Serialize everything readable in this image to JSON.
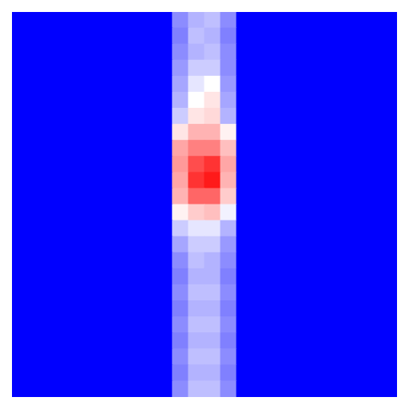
{
  "chart_data": {
    "type": "heatmap",
    "tick_labels": false,
    "color_range": [
      -1,
      1
    ],
    "cells": [
      [
        -1,
        -1,
        -1,
        -1,
        -1,
        -1,
        -1,
        -1,
        -1,
        -1,
        -0.45,
        -0.3,
        -0.25,
        -0.45,
        -1,
        -1,
        -1,
        -1,
        -1,
        -1,
        -1,
        -1,
        -1,
        -1
      ],
      [
        -1,
        -1,
        -1,
        -1,
        -1,
        -1,
        -1,
        -1,
        -1,
        -1,
        -0.5,
        -0.25,
        -0.3,
        -0.5,
        -1,
        -1,
        -1,
        -1,
        -1,
        -1,
        -1,
        -1,
        -1,
        -1
      ],
      [
        -1,
        -1,
        -1,
        -1,
        -1,
        -1,
        -1,
        -1,
        -1,
        -1,
        -0.45,
        -0.3,
        -0.25,
        -0.45,
        -1,
        -1,
        -1,
        -1,
        -1,
        -1,
        -1,
        -1,
        -1,
        -1
      ],
      [
        -1,
        -1,
        -1,
        -1,
        -1,
        -1,
        -1,
        -1,
        -1,
        -1,
        -0.4,
        -0.2,
        -0.2,
        -0.45,
        -1,
        -1,
        -1,
        -1,
        -1,
        -1,
        -1,
        -1,
        -1,
        -1
      ],
      [
        -1,
        -1,
        -1,
        -1,
        -1,
        -1,
        -1,
        -1,
        -1,
        -1,
        -0.35,
        -0.1,
        0.0,
        -0.4,
        -1,
        -1,
        -1,
        -1,
        -1,
        -1,
        -1,
        -1,
        -1,
        -1
      ],
      [
        -1,
        -1,
        -1,
        -1,
        -1,
        -1,
        -1,
        -1,
        -1,
        -1,
        -0.3,
        0.0,
        0.1,
        -0.35,
        -1,
        -1,
        -1,
        -1,
        -1,
        -1,
        -1,
        -1,
        -1,
        -1
      ],
      [
        -1,
        -1,
        -1,
        -1,
        -1,
        -1,
        -1,
        -1,
        -1,
        -1,
        -0.2,
        0.1,
        0.15,
        -0.3,
        -1,
        -1,
        -1,
        -1,
        -1,
        -1,
        -1,
        -1,
        -1,
        -1
      ],
      [
        -1,
        -1,
        -1,
        -1,
        -1,
        -1,
        -1,
        -1,
        -1,
        -1,
        0.1,
        0.3,
        0.3,
        0.05,
        -1,
        -1,
        -1,
        -1,
        -1,
        -1,
        -1,
        -1,
        -1,
        -1
      ],
      [
        -1,
        -1,
        -1,
        -1,
        -1,
        -1,
        -1,
        -1,
        -1,
        -1,
        0.35,
        0.5,
        0.5,
        0.25,
        -1,
        -1,
        -1,
        -1,
        -1,
        -1,
        -1,
        -1,
        -1,
        -1
      ],
      [
        -1,
        -1,
        -1,
        -1,
        -1,
        -1,
        -1,
        -1,
        -1,
        -1,
        0.4,
        0.7,
        0.8,
        0.35,
        -1,
        -1,
        -1,
        -1,
        -1,
        -1,
        -1,
        -1,
        -1,
        -1
      ],
      [
        -1,
        -1,
        -1,
        -1,
        -1,
        -1,
        -1,
        -1,
        -1,
        -1,
        0.35,
        0.8,
        0.9,
        0.3,
        -1,
        -1,
        -1,
        -1,
        -1,
        -1,
        -1,
        -1,
        -1,
        -1
      ],
      [
        -1,
        -1,
        -1,
        -1,
        -1,
        -1,
        -1,
        -1,
        -1,
        -1,
        0.3,
        0.6,
        0.6,
        0.2,
        -1,
        -1,
        -1,
        -1,
        -1,
        -1,
        -1,
        -1,
        -1,
        -1
      ],
      [
        -1,
        -1,
        -1,
        -1,
        -1,
        -1,
        -1,
        -1,
        -1,
        -1,
        0.05,
        0.2,
        0.25,
        -0.05,
        -1,
        -1,
        -1,
        -1,
        -1,
        -1,
        -1,
        -1,
        -1,
        -1
      ],
      [
        -1,
        -1,
        -1,
        -1,
        -1,
        -1,
        -1,
        -1,
        -1,
        -1,
        -0.2,
        -0.1,
        -0.1,
        -0.3,
        -1,
        -1,
        -1,
        -1,
        -1,
        -1,
        -1,
        -1,
        -1,
        -1
      ],
      [
        -1,
        -1,
        -1,
        -1,
        -1,
        -1,
        -1,
        -1,
        -1,
        -1,
        -0.35,
        -0.2,
        -0.2,
        -0.4,
        -1,
        -1,
        -1,
        -1,
        -1,
        -1,
        -1,
        -1,
        -1,
        -1
      ],
      [
        -1,
        -1,
        -1,
        -1,
        -1,
        -1,
        -1,
        -1,
        -1,
        -1,
        -0.45,
        -0.25,
        -0.3,
        -0.45,
        -1,
        -1,
        -1,
        -1,
        -1,
        -1,
        -1,
        -1,
        -1,
        -1
      ],
      [
        -1,
        -1,
        -1,
        -1,
        -1,
        -1,
        -1,
        -1,
        -1,
        -1,
        -0.5,
        -0.3,
        -0.3,
        -0.5,
        -1,
        -1,
        -1,
        -1,
        -1,
        -1,
        -1,
        -1,
        -1,
        -1
      ],
      [
        -1,
        -1,
        -1,
        -1,
        -1,
        -1,
        -1,
        -1,
        -1,
        -1,
        -0.45,
        -0.25,
        -0.25,
        -0.45,
        -1,
        -1,
        -1,
        -1,
        -1,
        -1,
        -1,
        -1,
        -1,
        -1
      ],
      [
        -1,
        -1,
        -1,
        -1,
        -1,
        -1,
        -1,
        -1,
        -1,
        -1,
        -0.5,
        -0.3,
        -0.3,
        -0.5,
        -1,
        -1,
        -1,
        -1,
        -1,
        -1,
        -1,
        -1,
        -1,
        -1
      ],
      [
        -1,
        -1,
        -1,
        -1,
        -1,
        -1,
        -1,
        -1,
        -1,
        -1,
        -0.45,
        -0.25,
        -0.25,
        -0.45,
        -1,
        -1,
        -1,
        -1,
        -1,
        -1,
        -1,
        -1,
        -1,
        -1
      ],
      [
        -1,
        -1,
        -1,
        -1,
        -1,
        -1,
        -1,
        -1,
        -1,
        -1,
        -0.5,
        -0.3,
        -0.3,
        -0.5,
        -1,
        -1,
        -1,
        -1,
        -1,
        -1,
        -1,
        -1,
        -1,
        -1
      ],
      [
        -1,
        -1,
        -1,
        -1,
        -1,
        -1,
        -1,
        -1,
        -1,
        -1,
        -0.45,
        -0.25,
        -0.25,
        -0.45,
        -1,
        -1,
        -1,
        -1,
        -1,
        -1,
        -1,
        -1,
        -1,
        -1
      ],
      [
        -1,
        -1,
        -1,
        -1,
        -1,
        -1,
        -1,
        -1,
        -1,
        -1,
        -0.5,
        -0.3,
        -0.3,
        -0.5,
        -1,
        -1,
        -1,
        -1,
        -1,
        -1,
        -1,
        -1,
        -1,
        -1
      ],
      [
        -1,
        -1,
        -1,
        -1,
        -1,
        -1,
        -1,
        -1,
        -1,
        -1,
        -0.45,
        -0.25,
        -0.25,
        -0.45,
        -1,
        -1,
        -1,
        -1,
        -1,
        -1,
        -1,
        -1,
        -1,
        -1
      ]
    ]
  }
}
